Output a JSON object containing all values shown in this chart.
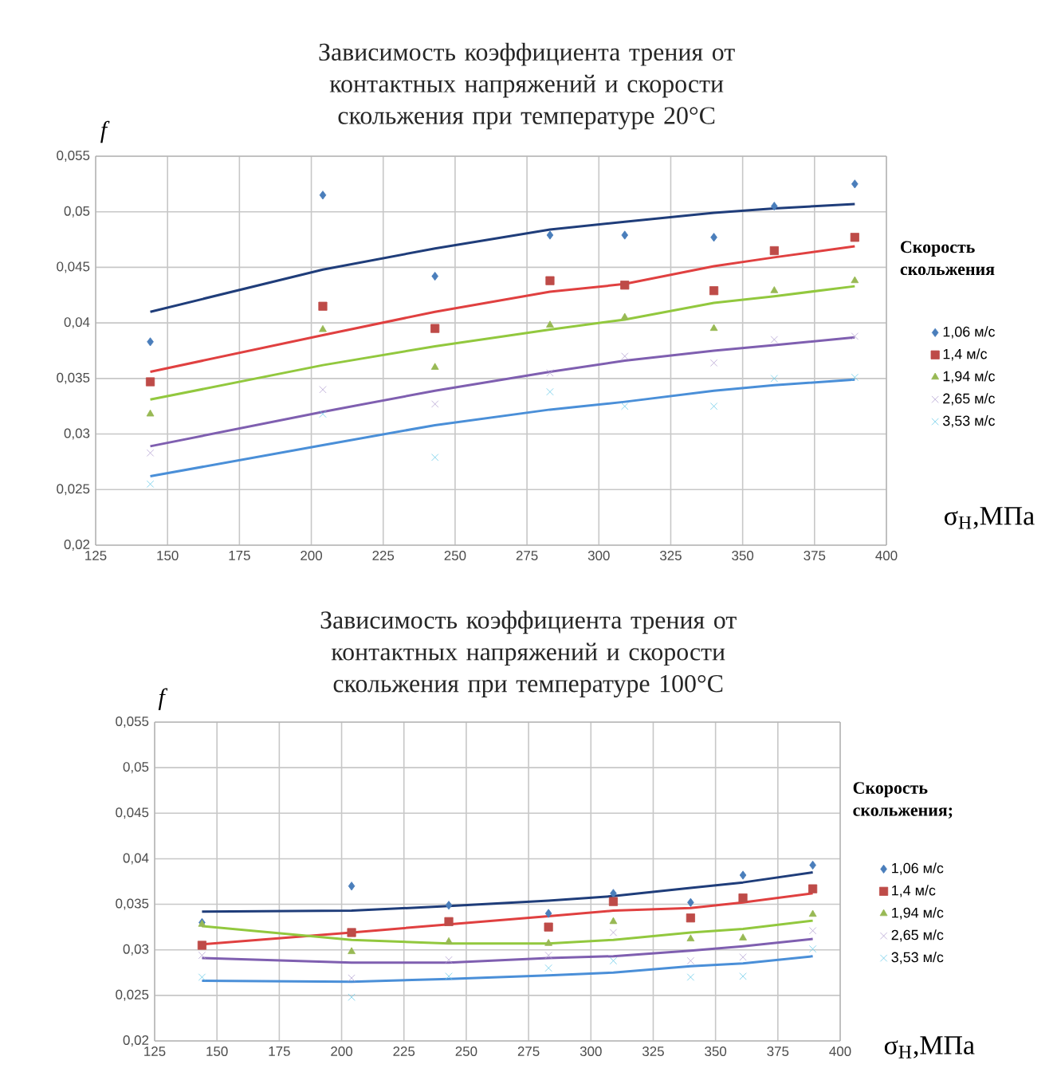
{
  "chart_data": [
    {
      "type": "scatter",
      "title": "Зависимость коэффициента трения от контактных напряжений и скорости скольжения при температуре 20°C",
      "xlabel": "σ$_{H}$,МПа",
      "ylabel": "f",
      "legend_title": "Скорость скольжения",
      "legend": "right",
      "grid": true,
      "x": [
        144,
        204,
        243,
        283,
        309,
        340,
        361,
        389
      ],
      "xlim": [
        125,
        400
      ],
      "xticks": [
        125,
        150,
        175,
        200,
        225,
        250,
        275,
        300,
        325,
        350,
        375,
        400
      ],
      "ylim": [
        0.02,
        0.055
      ],
      "yticks": [
        {
          "value": 0.02,
          "label": "0,02"
        },
        {
          "value": 0.025,
          "label": "0,025"
        },
        {
          "value": 0.03,
          "label": "0,03"
        },
        {
          "value": 0.035,
          "label": "0,035"
        },
        {
          "value": 0.04,
          "label": "0,04"
        },
        {
          "value": 0.045,
          "label": "0,045"
        },
        {
          "value": 0.05,
          "label": "0,05"
        },
        {
          "value": 0.055,
          "label": "0,055"
        }
      ],
      "series": [
        {
          "type": "line",
          "color": "#1f3d7a",
          "marker": "none",
          "values": [
            0.041,
            0.0448,
            0.0467,
            0.0484,
            0.0491,
            0.0499,
            0.0503,
            0.0507
          ]
        },
        {
          "type": "line",
          "color": "#e04040",
          "marker": "none",
          "values": [
            0.0356,
            0.0389,
            0.041,
            0.0428,
            0.0435,
            0.0451,
            0.0459,
            0.0469
          ]
        },
        {
          "type": "line",
          "color": "#92c83e",
          "marker": "none",
          "values": [
            0.0331,
            0.0362,
            0.0379,
            0.0394,
            0.0403,
            0.0418,
            0.0424,
            0.0433
          ]
        },
        {
          "type": "line",
          "color": "#7f5fb0",
          "marker": "none",
          "values": [
            0.0289,
            0.032,
            0.0339,
            0.0356,
            0.0366,
            0.0375,
            0.038,
            0.0387
          ]
        },
        {
          "type": "line",
          "color": "#4a8fd8",
          "marker": "none",
          "values": [
            0.0262,
            0.029,
            0.0308,
            0.0322,
            0.0329,
            0.0339,
            0.0344,
            0.0349
          ]
        },
        {
          "name": "1,06 м/с",
          "color": "#4a7ebb",
          "marker": "diamond",
          "values": [
            0.0383,
            0.0515,
            0.0442,
            0.0479,
            0.0479,
            0.0477,
            0.0505,
            0.0525
          ]
        },
        {
          "name": "1,4 м/с",
          "color": "#be4b48",
          "marker": "square",
          "values": [
            0.0347,
            0.0415,
            0.0395,
            0.0438,
            0.0434,
            0.0429,
            0.0465,
            0.0477
          ]
        },
        {
          "name": "1,94 м/с",
          "color": "#98b954",
          "marker": "triangle",
          "values": [
            0.0318,
            0.0394,
            0.036,
            0.0398,
            0.0405,
            0.0395,
            0.0429,
            0.0438
          ]
        },
        {
          "name": "2,65 м/с",
          "color": "#b6a4d3",
          "marker": "cross",
          "values": [
            0.0283,
            0.034,
            0.0327,
            0.0355,
            0.037,
            0.0364,
            0.0385,
            0.0388
          ]
        },
        {
          "name": "3,53 м/с",
          "color": "#6ccbe8",
          "marker": "cross",
          "values": [
            0.0255,
            0.0318,
            0.0279,
            0.0338,
            0.0325,
            0.0325,
            0.035,
            0.0351
          ]
        }
      ]
    },
    {
      "type": "scatter",
      "title": "Зависимость коэффициента трения от контактных напряжений и скорости скольжения при температуре 100°C",
      "xlabel": "σ$_{H}$,МПа",
      "ylabel": "f",
      "legend_title": "Скорость скольжения;",
      "legend": "right",
      "grid": true,
      "x": [
        144,
        204,
        243,
        283,
        309,
        340,
        361,
        389
      ],
      "xlim": [
        125,
        400
      ],
      "xticks": [
        125,
        150,
        175,
        200,
        225,
        250,
        275,
        300,
        325,
        350,
        375,
        400
      ],
      "ylim": [
        0.02,
        0.055
      ],
      "yticks": [
        {
          "value": 0.02,
          "label": "0,02"
        },
        {
          "value": 0.025,
          "label": "0,025"
        },
        {
          "value": 0.03,
          "label": "0,03"
        },
        {
          "value": 0.035,
          "label": "0,035"
        },
        {
          "value": 0.04,
          "label": "0,04"
        },
        {
          "value": 0.045,
          "label": "0,045"
        },
        {
          "value": 0.05,
          "label": "0,05"
        },
        {
          "value": 0.055,
          "label": "0,055"
        }
      ],
      "series": [
        {
          "type": "line",
          "color": "#1f3d7a",
          "marker": "none",
          "values": [
            0.0342,
            0.0343,
            0.0348,
            0.0354,
            0.0359,
            0.0368,
            0.0374,
            0.0385
          ]
        },
        {
          "type": "line",
          "color": "#e04040",
          "marker": "none",
          "values": [
            0.0306,
            0.0319,
            0.0328,
            0.0337,
            0.0343,
            0.0346,
            0.0352,
            0.0362
          ]
        },
        {
          "type": "line",
          "color": "#92c83e",
          "marker": "none",
          "values": [
            0.0326,
            0.0311,
            0.0307,
            0.0307,
            0.0311,
            0.0319,
            0.0323,
            0.0332
          ]
        },
        {
          "type": "line",
          "color": "#7f5fb0",
          "marker": "none",
          "values": [
            0.0291,
            0.0286,
            0.0286,
            0.0291,
            0.0293,
            0.0299,
            0.0304,
            0.0312
          ]
        },
        {
          "type": "line",
          "color": "#4a8fd8",
          "marker": "none",
          "values": [
            0.0266,
            0.0265,
            0.0268,
            0.0272,
            0.0275,
            0.0282,
            0.0285,
            0.0293
          ]
        },
        {
          "name": "1,06 м/с",
          "color": "#4a7ebb",
          "marker": "diamond",
          "values": [
            0.033,
            0.037,
            0.0349,
            0.034,
            0.0362,
            0.0352,
            0.0382,
            0.0393
          ]
        },
        {
          "name": "1,4 м/с",
          "color": "#be4b48",
          "marker": "square",
          "values": [
            0.0305,
            0.0319,
            0.0331,
            0.0325,
            0.0353,
            0.0335,
            0.0357,
            0.0367
          ]
        },
        {
          "name": "1,94 м/с",
          "color": "#98b954",
          "marker": "triangle",
          "values": [
            0.0328,
            0.0298,
            0.0309,
            0.0307,
            0.0331,
            0.0312,
            0.0313,
            0.0339
          ]
        },
        {
          "name": "2,65 м/с",
          "color": "#b6a4d3",
          "marker": "cross",
          "values": [
            0.0294,
            0.0269,
            0.0289,
            0.0294,
            0.0319,
            0.0288,
            0.0292,
            0.0321
          ]
        },
        {
          "name": "3,53 м/с",
          "color": "#6ccbe8",
          "marker": "cross",
          "values": [
            0.027,
            0.0248,
            0.0271,
            0.028,
            0.0288,
            0.027,
            0.0271,
            0.0301
          ]
        }
      ]
    }
  ]
}
